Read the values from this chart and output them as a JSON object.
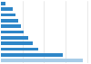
{
  "values": [
    57,
    43,
    26,
    22,
    19,
    16,
    14,
    12,
    10,
    8,
    3
  ],
  "bar_color": "#2e86c8",
  "last_bar_color": "#a8cce8",
  "background_color": "#ffffff",
  "grid_color": "#d9d9d9",
  "xlim": [
    0,
    62
  ],
  "bar_height": 0.55,
  "figwidth": 1.0,
  "figheight": 0.71,
  "dpi": 100
}
